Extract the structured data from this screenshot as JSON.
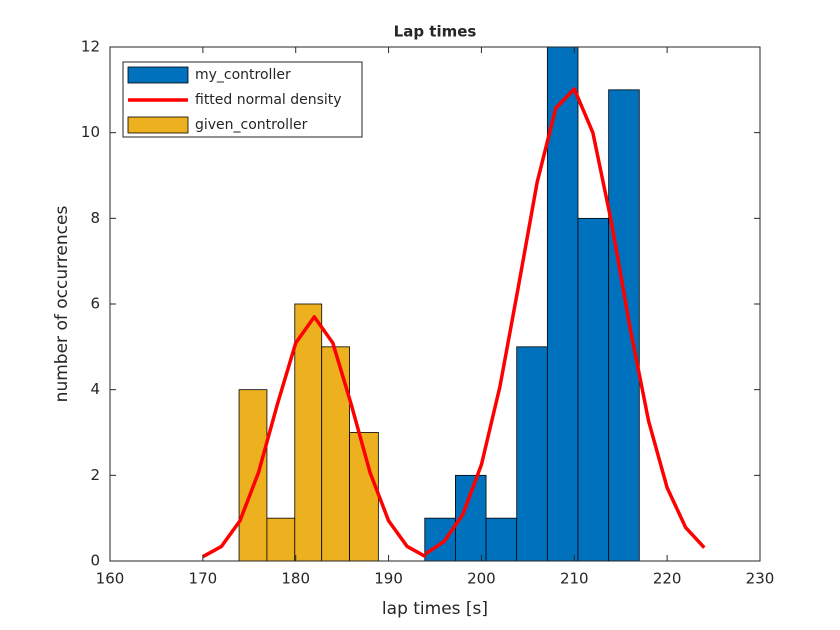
{
  "chart_data": {
    "type": "histogram",
    "title": "Lap times",
    "x_label": "lap times [s]",
    "y_label": "number of occurrences",
    "xlim": [
      160,
      230
    ],
    "xticks": [
      160,
      170,
      180,
      190,
      200,
      210,
      220,
      230
    ],
    "ylim": [
      0,
      12
    ],
    "yticks": [
      0,
      2,
      4,
      6,
      8,
      10,
      12
    ],
    "legend": "top-left",
    "series": [
      {
        "name": "my_controller",
        "color": "#0072BD",
        "bins": [
          193.9,
          197.2,
          200.5,
          203.8,
          207.1,
          210.4,
          213.7,
          217.0
        ],
        "values": [
          1,
          2,
          1,
          5,
          12,
          8,
          11
        ]
      },
      {
        "name": "fitted normal density",
        "color": "#FF0000",
        "type": "line",
        "x": [
          170,
          172,
          174,
          176,
          178,
          180,
          182,
          184,
          186,
          188,
          190,
          192,
          194,
          null,
          194,
          196,
          198,
          200,
          202,
          204,
          206,
          208,
          210,
          212,
          214,
          216,
          218,
          220,
          222,
          224
        ],
        "values": [
          0.1,
          0.34,
          0.94,
          2.07,
          3.64,
          5.09,
          5.7,
          5.09,
          3.64,
          2.07,
          0.94,
          0.34,
          0.1,
          null,
          0.17,
          0.46,
          1.09,
          2.25,
          4.08,
          6.43,
          8.84,
          10.57,
          11.02,
          10.0,
          7.91,
          5.45,
          3.27,
          1.71,
          0.78,
          0.31
        ]
      },
      {
        "name": "given_controller",
        "color": "#EDB120",
        "bins": [
          173.9,
          176.9,
          179.9,
          182.8,
          185.8,
          188.9
        ],
        "values": [
          4,
          1,
          6,
          5,
          3
        ]
      }
    ]
  }
}
